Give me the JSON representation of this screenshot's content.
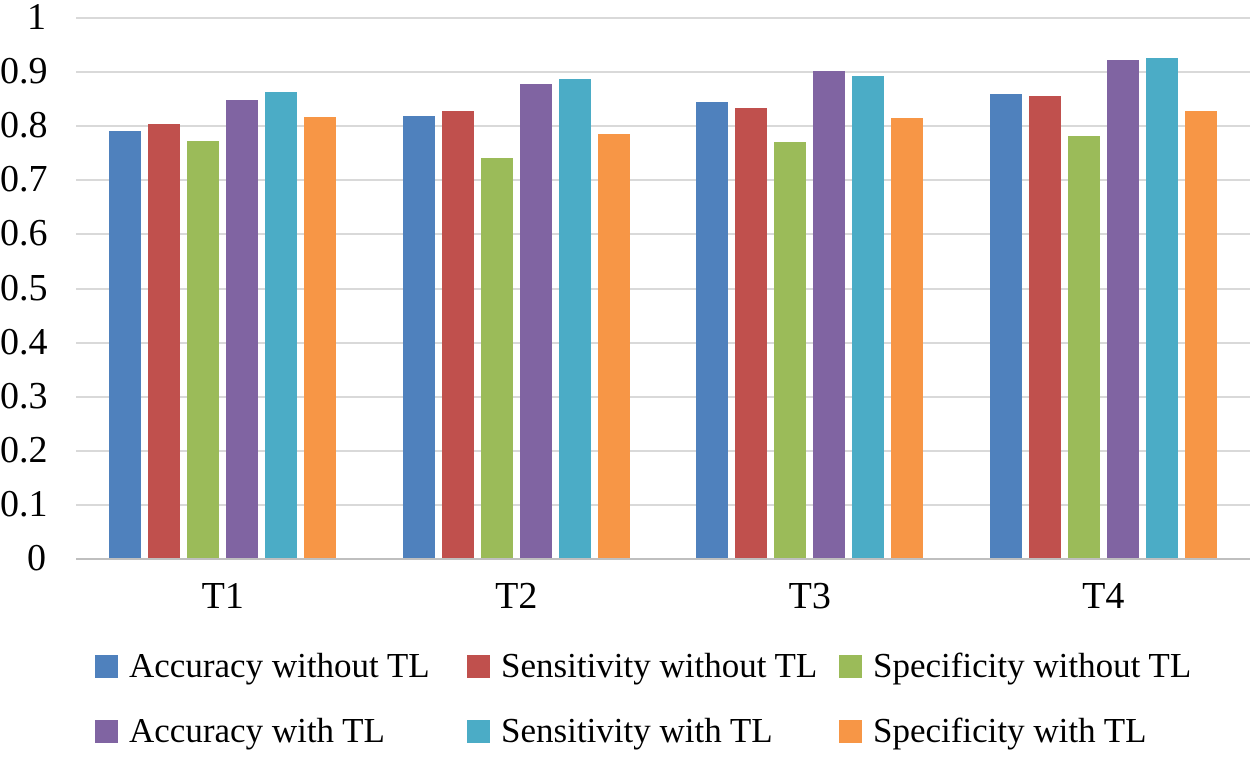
{
  "chart_data": {
    "type": "bar",
    "title": "",
    "xlabel": "",
    "ylabel": "",
    "categories": [
      "T1",
      "T2",
      "T3",
      "T4"
    ],
    "series": [
      {
        "name": "Accuracy without TL",
        "color": "#4F81BD",
        "values": [
          0.789,
          0.817,
          0.842,
          0.858
        ]
      },
      {
        "name": "Sensitivity without TL",
        "color": "#C0504D",
        "values": [
          0.802,
          0.826,
          0.832,
          0.854
        ]
      },
      {
        "name": "Specificity without TL",
        "color": "#9BBB59",
        "values": [
          0.771,
          0.74,
          0.769,
          0.78
        ]
      },
      {
        "name": "Accuracy with TL",
        "color": "#8064A2",
        "values": [
          0.846,
          0.877,
          0.9,
          0.92
        ]
      },
      {
        "name": "Sensitivity with TL",
        "color": "#4BACC6",
        "values": [
          0.862,
          0.886,
          0.891,
          0.925
        ]
      },
      {
        "name": "Specificity with TL",
        "color": "#F79646",
        "values": [
          0.815,
          0.783,
          0.814,
          0.826
        ]
      }
    ],
    "ylim": [
      0,
      1
    ],
    "ytick_step": 0.1,
    "yticks": [
      "1",
      "0.9",
      "0.8",
      "0.7",
      "0.6",
      "0.5",
      "0.4",
      "0.3",
      "0.2",
      "0.1",
      "0"
    ],
    "grid": true,
    "gridline_color": "#D9D9D9",
    "baseline_color": "#BFBFBF",
    "legend_position": "bottom",
    "legend_columns": 3
  }
}
